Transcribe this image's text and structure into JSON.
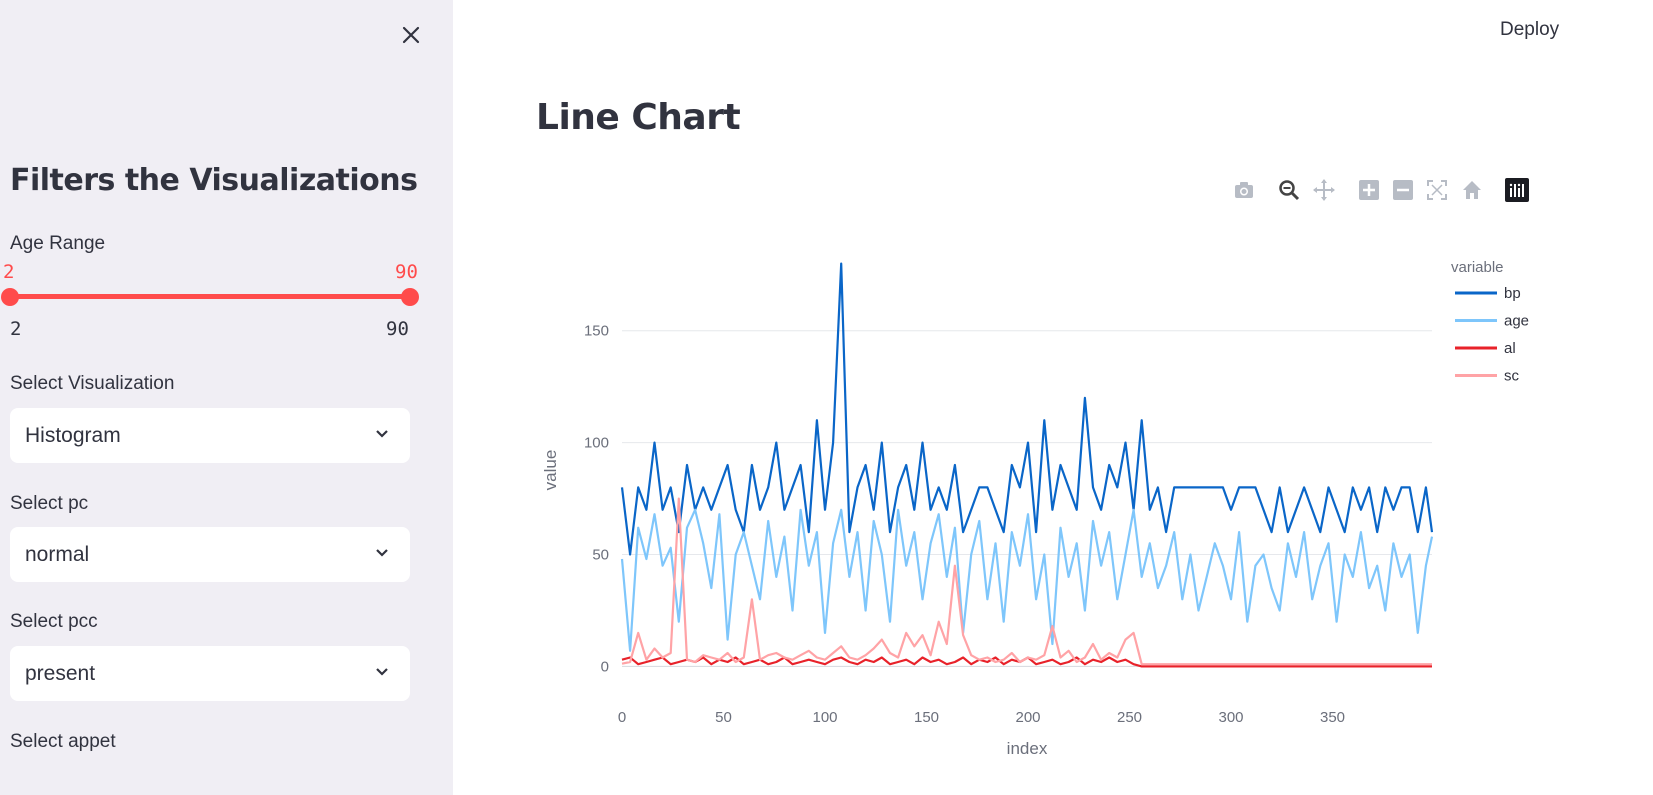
{
  "header": {
    "deploy_label": "Deploy"
  },
  "sidebar": {
    "title": "Filters the Visualizations",
    "age_range": {
      "label": "Age Range",
      "low": "2",
      "high": "90",
      "min": "2",
      "max": "90"
    },
    "selects": [
      {
        "label": "Select Visualization",
        "value": "Histogram"
      },
      {
        "label": "Select pc",
        "value": "normal"
      },
      {
        "label": "Select pcc",
        "value": "present"
      }
    ],
    "next_label": "Select appet"
  },
  "main": {
    "title": "Line Chart"
  },
  "colors": {
    "bp": "#0a66c8",
    "age": "#7ec6fb",
    "al": "#e8222a",
    "sc": "#ffa3a6",
    "accent": "#ff4b4b"
  },
  "chart_data": {
    "type": "line",
    "xlabel": "index",
    "ylabel": "value",
    "xlim": [
      0,
      399
    ],
    "ylim": [
      -15,
      195
    ],
    "x_ticks": [
      0,
      50,
      100,
      150,
      200,
      250,
      300,
      350
    ],
    "y_ticks": [
      0,
      50,
      100,
      150
    ],
    "legend_title": "variable",
    "legend_position": "right",
    "grid": true,
    "series": [
      {
        "name": "bp",
        "x_start": 0,
        "x_step": 4,
        "values": [
          80,
          50,
          80,
          70,
          100,
          70,
          80,
          60,
          90,
          70,
          80,
          70,
          80,
          90,
          70,
          60,
          90,
          70,
          80,
          100,
          70,
          80,
          90,
          60,
          110,
          70,
          100,
          180,
          60,
          80,
          90,
          70,
          100,
          60,
          80,
          90,
          70,
          100,
          70,
          80,
          70,
          90,
          60,
          70,
          80,
          80,
          70,
          60,
          90,
          80,
          100,
          60,
          110,
          70,
          90,
          80,
          70,
          120,
          80,
          70,
          90,
          80,
          100,
          70,
          110,
          70,
          80,
          60,
          80,
          80,
          80,
          80,
          80,
          80,
          80,
          70,
          80,
          80,
          80,
          70,
          60,
          80,
          60,
          70,
          80,
          70,
          60,
          80,
          70,
          60,
          80,
          70,
          80,
          60,
          80,
          70,
          80,
          80,
          60,
          80,
          60
        ]
      },
      {
        "name": "age",
        "x_start": 0,
        "x_step": 4,
        "values": [
          48,
          7,
          62,
          48,
          68,
          45,
          53,
          20,
          62,
          70,
          55,
          35,
          68,
          12,
          50,
          60,
          45,
          30,
          65,
          40,
          58,
          25,
          70,
          45,
          60,
          15,
          55,
          70,
          40,
          60,
          25,
          65,
          50,
          20,
          70,
          45,
          60,
          30,
          55,
          68,
          40,
          62,
          15,
          50,
          65,
          30,
          55,
          20,
          60,
          45,
          68,
          30,
          50,
          10,
          62,
          40,
          55,
          25,
          65,
          45,
          60,
          30,
          50,
          70,
          40,
          55,
          35,
          45,
          60,
          30,
          50,
          25,
          40,
          55,
          45,
          30,
          60,
          20,
          45,
          50,
          35,
          25,
          55,
          40,
          60,
          30,
          45,
          55,
          20,
          50,
          40,
          60,
          35,
          45,
          25,
          55,
          40,
          50,
          15,
          45,
          58
        ]
      },
      {
        "name": "al",
        "x_start": 0,
        "x_step": 4,
        "values": [
          3,
          4,
          1,
          2,
          3,
          4,
          1,
          2,
          3,
          2,
          4,
          1,
          3,
          2,
          4,
          1,
          2,
          3,
          1,
          2,
          4,
          1,
          2,
          3,
          2,
          1,
          3,
          4,
          2,
          1,
          3,
          2,
          4,
          1,
          2,
          3,
          1,
          4,
          2,
          3,
          1,
          2,
          4,
          1,
          3,
          2,
          4,
          1,
          3,
          2,
          4,
          1,
          2,
          3,
          1,
          2,
          4,
          1,
          3,
          2,
          4,
          2,
          3,
          1,
          0,
          0,
          0,
          0,
          0,
          0,
          0,
          0,
          0,
          0,
          0,
          0,
          0,
          0,
          0,
          0,
          0,
          0,
          0,
          0,
          0,
          0,
          0,
          0,
          0,
          0,
          0,
          0,
          0,
          0,
          0,
          0,
          0,
          0,
          0,
          0,
          0
        ]
      },
      {
        "name": "sc",
        "x_start": 0,
        "x_step": 4,
        "values": [
          1.2,
          2,
          15,
          3,
          8,
          4,
          6,
          75,
          3,
          2,
          5,
          4,
          3,
          6,
          2,
          4,
          30,
          3,
          5,
          6,
          4,
          3,
          5,
          7,
          4,
          3,
          6,
          9,
          4,
          3,
          5,
          8,
          12,
          6,
          4,
          15,
          9,
          14,
          5,
          20,
          10,
          45,
          14,
          5,
          3,
          4,
          2,
          3,
          6,
          2,
          4,
          3,
          5,
          18,
          4,
          7,
          2,
          4,
          10,
          3,
          6,
          4,
          12,
          15,
          1,
          1,
          1,
          1,
          1,
          1,
          1,
          1,
          1,
          1,
          1,
          1,
          1,
          1,
          1,
          1,
          1,
          1,
          1,
          1,
          1,
          1,
          1,
          1,
          1,
          1,
          1,
          1,
          1,
          1,
          1,
          1,
          1,
          1,
          1,
          1,
          1
        ]
      }
    ]
  }
}
